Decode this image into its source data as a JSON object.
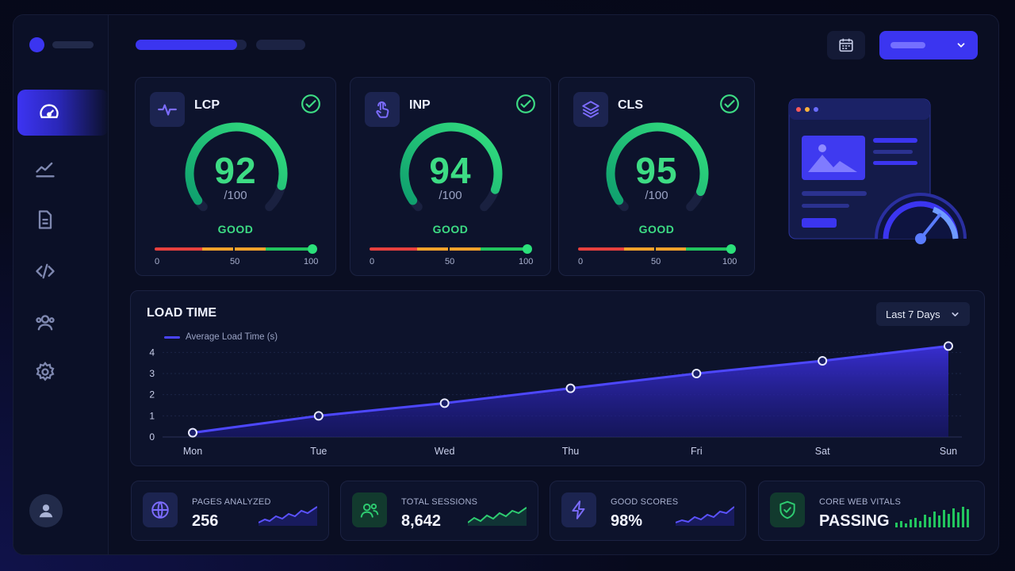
{
  "colors": {
    "accent": "#3b35f0",
    "good": "#3ddc84",
    "poor": "#e8403e",
    "needs_improvement": "#f2a22b",
    "background": "#0a0e22"
  },
  "sidebar": {
    "items": [
      {
        "icon": "gauge-icon",
        "active": true
      },
      {
        "icon": "line-chart-icon",
        "active": false
      },
      {
        "icon": "document-icon",
        "active": false
      },
      {
        "icon": "code-icon",
        "active": false
      },
      {
        "icon": "users-icon",
        "active": false
      },
      {
        "icon": "gear-icon",
        "active": false
      }
    ],
    "profile_icon": "user-icon"
  },
  "header": {
    "calendar_icon": "calendar-icon",
    "dropdown_icon": "chevron-down-icon"
  },
  "vitals": [
    {
      "name": "LCP",
      "icon": "pulse-icon",
      "score": "92",
      "max": "/100",
      "score_value": 92,
      "status": "GOOD",
      "scale": [
        "0",
        "50",
        "100"
      ]
    },
    {
      "name": "INP",
      "icon": "tap-icon",
      "score": "94",
      "max": "/100",
      "score_value": 94,
      "status": "GOOD",
      "scale": [
        "0",
        "50",
        "100"
      ]
    },
    {
      "name": "CLS",
      "icon": "layers-icon",
      "score": "95",
      "max": "/100",
      "score_value": 95,
      "status": "GOOD",
      "scale": [
        "0",
        "50",
        "100"
      ]
    }
  ],
  "load_time": {
    "title": "LOAD TIME",
    "range_label": "Last 7 Days"
  },
  "chart_data": {
    "type": "area",
    "title": "LOAD TIME",
    "categories": [
      "Mon",
      "Tue",
      "Wed",
      "Thu",
      "Fri",
      "Sat",
      "Sun"
    ],
    "series": [
      {
        "name": "Average Load Time (s)",
        "values": [
          0.2,
          1.0,
          1.6,
          2.3,
          3.0,
          3.6,
          4.3
        ]
      }
    ],
    "yticks": [
      "0",
      "1",
      "2",
      "3",
      "4"
    ],
    "ylim": [
      0,
      4.5
    ],
    "grid": true,
    "legend": "top-left"
  },
  "stats": [
    {
      "label": "PAGES ANALYZED",
      "value": "256",
      "icon": "globe-icon",
      "color": "#6a5cff"
    },
    {
      "label": "TOTAL SESSIONS",
      "value": "8,642",
      "icon": "users-icon",
      "color": "#2ecc71"
    },
    {
      "label": "GOOD SCORES",
      "value": "98%",
      "icon": "lightning-icon",
      "color": "#6a5cff"
    },
    {
      "label": "CORE WEB VITALS",
      "value": "PASSING",
      "icon": "shield-check-icon",
      "color": "#2ecc71"
    }
  ]
}
